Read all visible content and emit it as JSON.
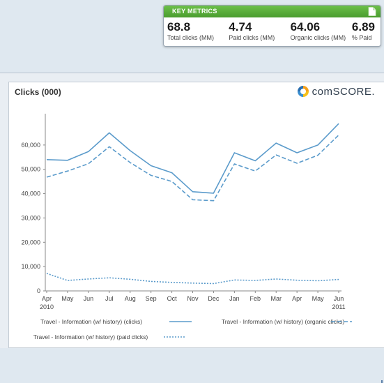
{
  "metrics": {
    "title": "KEY METRICS",
    "items": [
      {
        "value": "68.8",
        "label": "Total clicks (MM)"
      },
      {
        "value": "4.74",
        "label": "Paid clicks (MM)"
      },
      {
        "value": "64.06",
        "label": "Organic clicks (MM)"
      },
      {
        "value": "6.89",
        "label": "% Paid"
      }
    ]
  },
  "logo": {
    "text": "comSCORE."
  },
  "colors": {
    "series": "#5b9bcb",
    "axis": "#8a8a8a",
    "text": "#444444",
    "accent": "#5fb43f"
  },
  "chart_data": {
    "type": "line",
    "title": "Clicks (000)",
    "categories": [
      "Apr",
      "May",
      "Jun",
      "Jul",
      "Aug",
      "Sep",
      "Oct",
      "Nov",
      "Dec",
      "Jan",
      "Feb",
      "Mar",
      "Apr",
      "May",
      "Jun"
    ],
    "year_labels": {
      "0": "2010",
      "14": "2011"
    },
    "ylim": [
      0,
      70000
    ],
    "yticks": [
      "0",
      "10,000",
      "20,000",
      "30,000",
      "40,000",
      "50,000",
      "60,000"
    ],
    "grid": false,
    "legend_position": "bottom",
    "series": [
      {
        "name": "Travel - Information (w/ history) (clicks)",
        "style": "solid",
        "values": [
          54000,
          53700,
          57300,
          65000,
          57700,
          51500,
          48600,
          40800,
          40200,
          56800,
          53500,
          60800,
          56800,
          60000,
          68800
        ]
      },
      {
        "name": "Travel - Information (w/ history) (organic clicks)",
        "style": "dashed",
        "values": [
          46800,
          49300,
          52300,
          59300,
          52800,
          47500,
          45000,
          37500,
          37100,
          52200,
          49300,
          55900,
          52500,
          55800,
          64100
        ]
      },
      {
        "name": "Travel - Information (w/ history) (paid clicks)",
        "style": "dotted",
        "values": [
          7200,
          4300,
          4900,
          5400,
          4800,
          3900,
          3500,
          3200,
          3000,
          4500,
          4300,
          4900,
          4400,
          4200,
          4700
        ]
      }
    ]
  }
}
